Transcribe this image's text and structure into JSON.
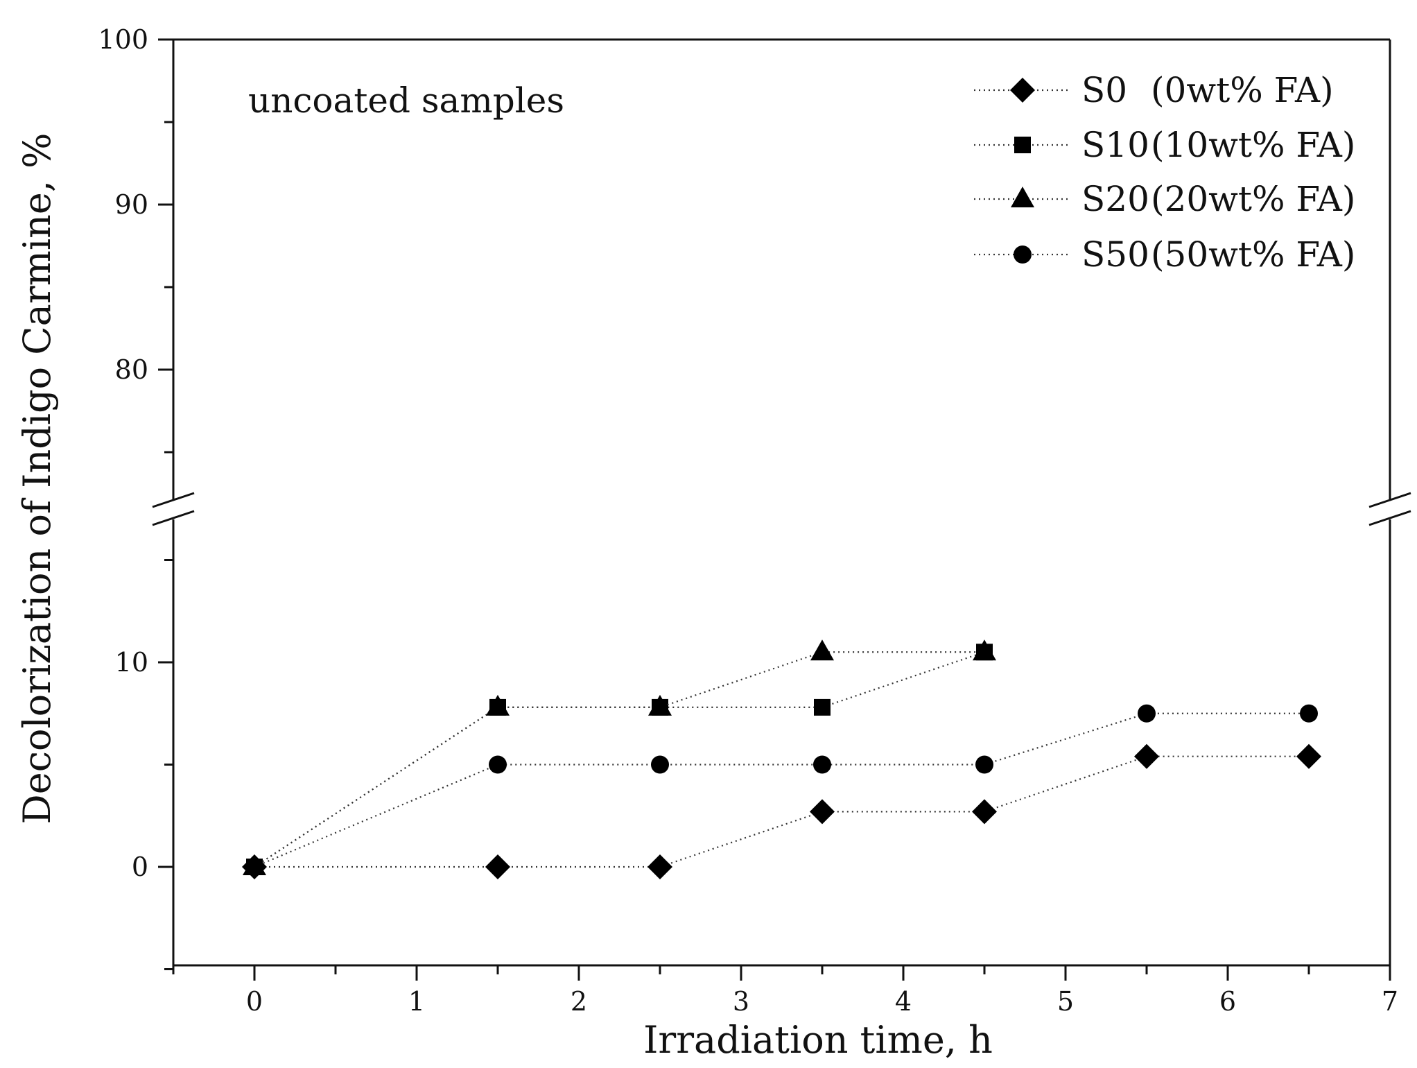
{
  "chart_data": {
    "type": "scatter",
    "title": "",
    "xlabel": "Irradiation time, h",
    "ylabel": "Decolorization of Indigo Carmine, %",
    "xlim": [
      -0.5,
      7
    ],
    "ylim_lower": [
      -5,
      17
    ],
    "ylim_upper": [
      72,
      100
    ],
    "y_axis_break": true,
    "x_ticks": [
      0,
      1,
      2,
      3,
      4,
      5,
      6,
      7
    ],
    "y_ticks_lower": [
      0,
      10
    ],
    "y_ticks_upper": [
      80,
      90,
      100
    ],
    "line_style": "dotted",
    "annotation": "uncoated samples",
    "legend_position": "top-right",
    "series": [
      {
        "name": "S0",
        "label_paren": "(0wt% FA)",
        "marker": "diamond",
        "points": [
          [
            0,
            0
          ],
          [
            1.5,
            0
          ],
          [
            2.5,
            0
          ],
          [
            3.5,
            2.7
          ],
          [
            4.5,
            2.7
          ],
          [
            5.5,
            5.4
          ],
          [
            6.5,
            5.4
          ]
        ]
      },
      {
        "name": "S10",
        "label_paren": "(10wt% FA)",
        "marker": "square",
        "points": [
          [
            0,
            0
          ],
          [
            1.5,
            7.8
          ],
          [
            2.5,
            7.8
          ],
          [
            3.5,
            7.8
          ],
          [
            4.5,
            10.5
          ]
        ]
      },
      {
        "name": "S20",
        "label_paren": "(20wt% FA)",
        "marker": "triangle",
        "points": [
          [
            0,
            0
          ],
          [
            1.5,
            7.8
          ],
          [
            2.5,
            7.8
          ],
          [
            3.5,
            10.5
          ],
          [
            4.5,
            10.5
          ]
        ]
      },
      {
        "name": "S50",
        "label_paren": "(50wt% FA)",
        "marker": "circle",
        "points": [
          [
            0,
            0
          ],
          [
            1.5,
            5.0
          ],
          [
            2.5,
            5.0
          ],
          [
            3.5,
            5.0
          ],
          [
            4.5,
            5.0
          ],
          [
            5.5,
            7.5
          ],
          [
            6.5,
            7.5
          ]
        ]
      }
    ]
  }
}
